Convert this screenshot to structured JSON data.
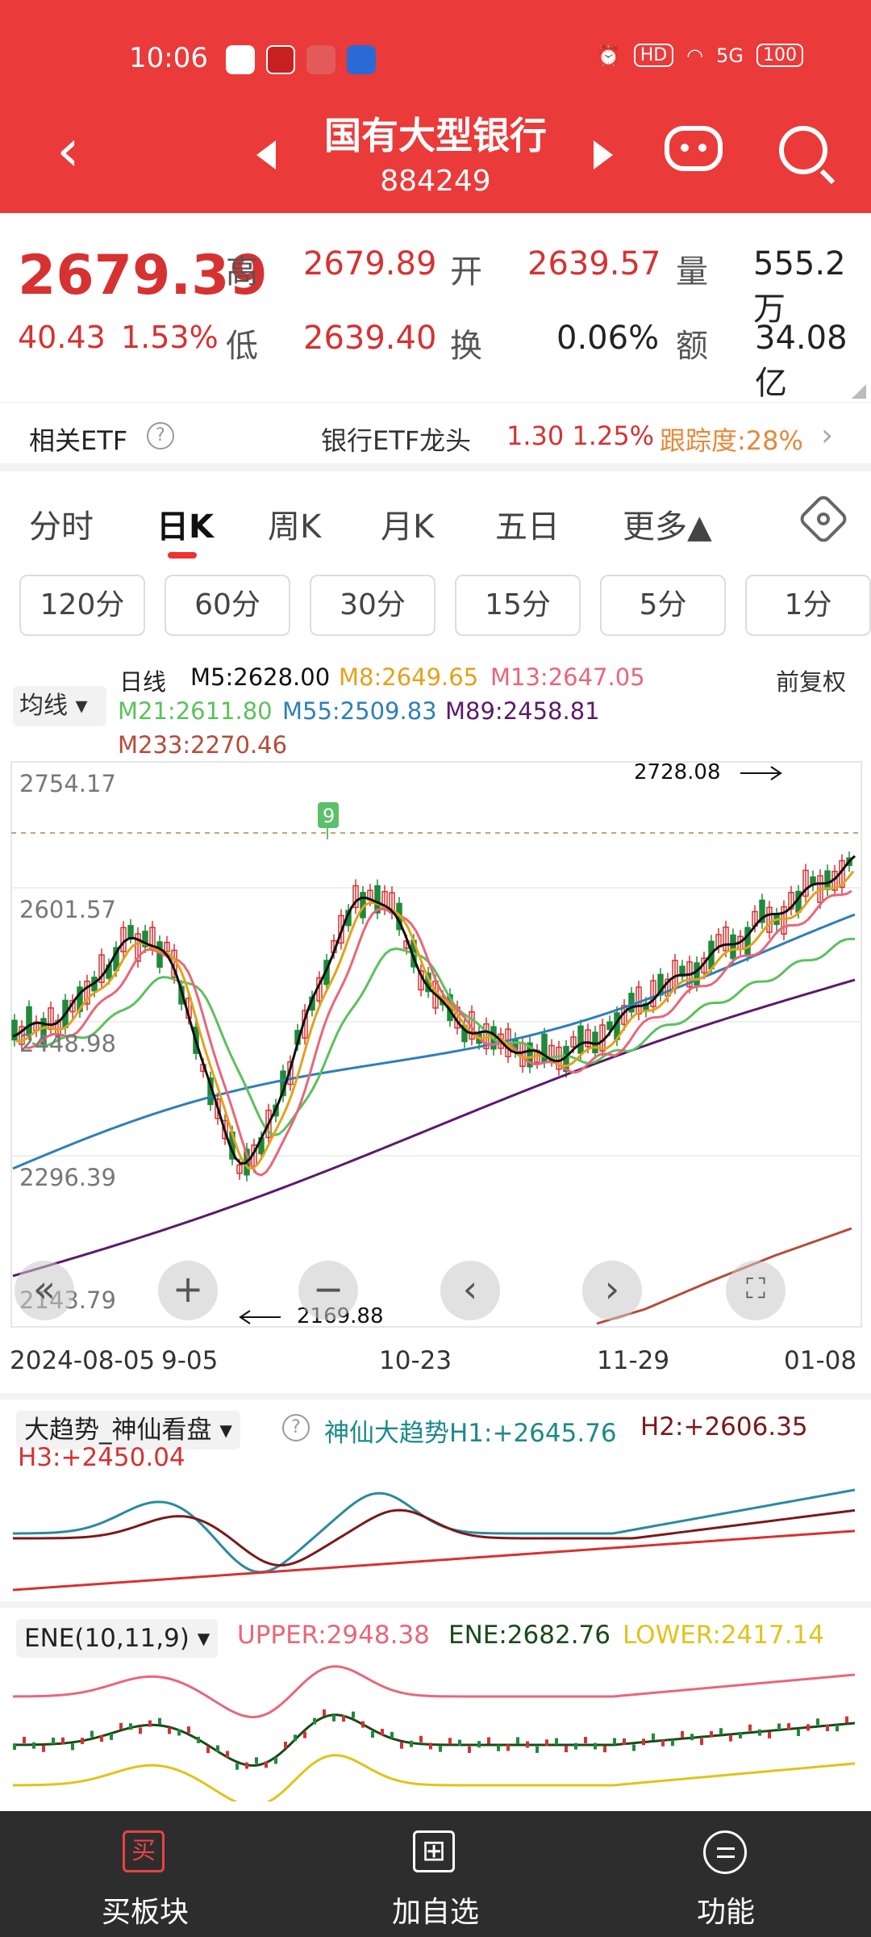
{
  "status": {
    "time": "10:06",
    "hd": "HD",
    "net": "5G",
    "battery": "100"
  },
  "header": {
    "title": "国有大型银行",
    "code": "884249"
  },
  "quote": {
    "price": "2679.39",
    "change": "40.43",
    "change_pct": "1.53%",
    "high_label": "高",
    "high": "2679.89",
    "open_label": "开",
    "open": "2639.57",
    "vol_label": "量",
    "vol": "555.2万",
    "low_label": "低",
    "low": "2639.40",
    "turn_label": "换",
    "turn": "0.06%",
    "amt_label": "额",
    "amt": "34.08亿"
  },
  "etf": {
    "label": "相关ETF",
    "name": "银行ETF龙头",
    "price": "1.30",
    "pct": "1.25%",
    "track": "跟踪度:28%"
  },
  "tabs": [
    "分时",
    "日K",
    "周K",
    "月K",
    "五日",
    "更多▲"
  ],
  "periods": [
    "120分",
    "60分",
    "30分",
    "15分",
    "5分",
    "1分"
  ],
  "ma": {
    "selector": "均线 ▾",
    "day": "日线",
    "m5": "M5:2628.00",
    "m8": "M8:2649.65",
    "m13": "M13:2647.05",
    "m21": "M21:2611.80",
    "m55": "M55:2509.83",
    "m89": "M89:2458.81",
    "m233": "M233:2270.46",
    "adjust": "前复权",
    "colors": {
      "m5": "#111111",
      "m8": "#e3a21a",
      "m13": "#e8677a",
      "m21": "#5cc15c",
      "m55": "#2f7fb8",
      "m89": "#5b1b6b",
      "m233": "#b84a3a"
    }
  },
  "chart": {
    "y_labels": [
      "2754.17",
      "2601.57",
      "2448.98",
      "2296.39",
      "2143.79"
    ],
    "high_mark": "2728.08",
    "low_mark": "2169.88",
    "x_labels": [
      "2024-08-05",
      "9-05",
      "10-23",
      "11-29",
      "01-08"
    ],
    "nav_icons": [
      "double-left-icon",
      "zoom-in-icon",
      "zoom-out-icon",
      "prev-icon",
      "next-icon",
      "fullscreen-icon"
    ],
    "signal": "9"
  },
  "ind1": {
    "selector": "大趋势_神仙看盘 ▾",
    "h1": "神仙大趋势H1:+2645.76",
    "h2": "H2:+2606.35",
    "h3": "H3:+2450.04"
  },
  "ind2": {
    "selector": "ENE(10,11,9) ▾",
    "upper": "UPPER:2948.38",
    "ene": "ENE:2682.76",
    "lower": "LOWER:2417.14"
  },
  "bottom": [
    {
      "icon": "买",
      "label": "买板块"
    },
    {
      "icon": "⊞",
      "label": "加自选"
    },
    {
      "icon": "",
      "label": "功能"
    }
  ]
}
